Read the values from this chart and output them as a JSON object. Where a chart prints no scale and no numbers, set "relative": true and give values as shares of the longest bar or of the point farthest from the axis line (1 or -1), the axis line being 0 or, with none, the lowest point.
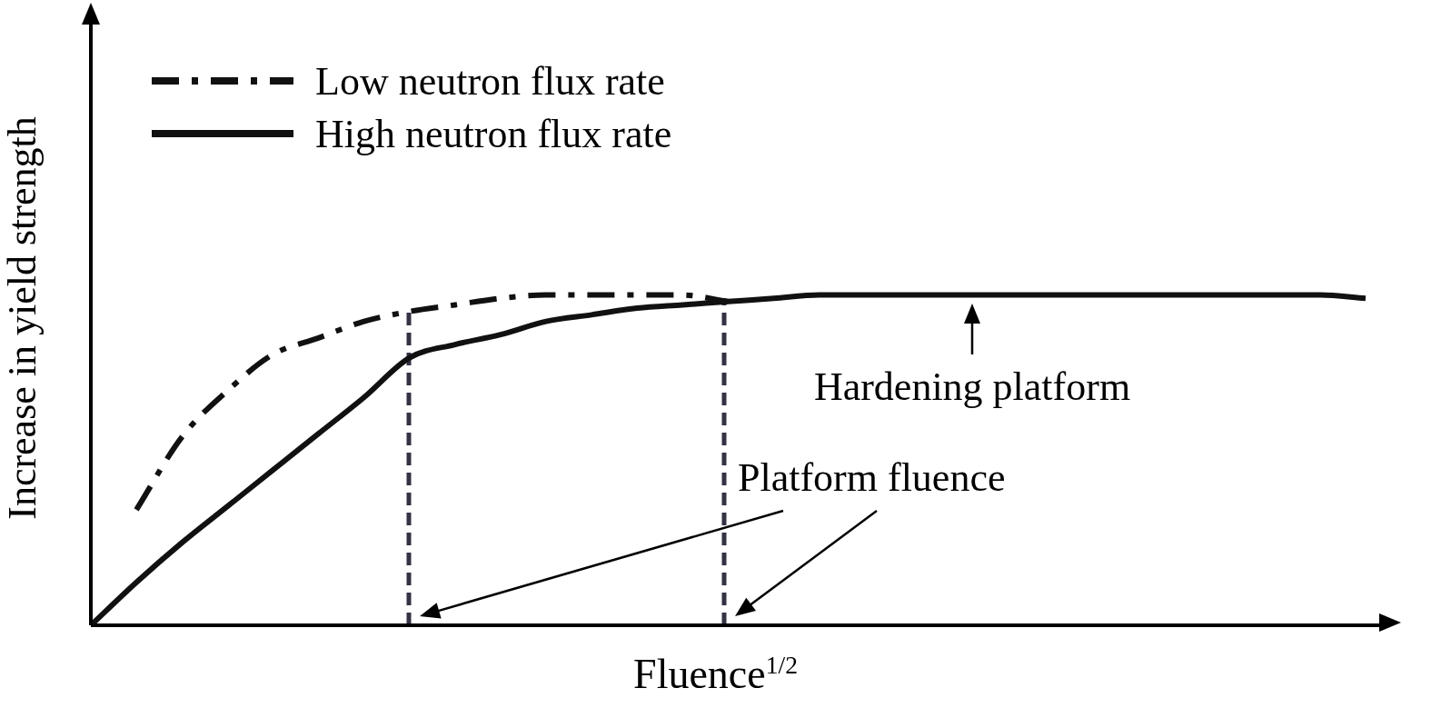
{
  "chart_data": {
    "type": "line",
    "relative": true,
    "xlabel": "Fluence$^{1/2}$",
    "ylabel": "Increase in yield strength",
    "tick_labels": false,
    "grid": false,
    "legend": "top left",
    "marker": "none",
    "categories": [
      null,
      null,
      null,
      null,
      null,
      null,
      null,
      null,
      null,
      null,
      null,
      null,
      null,
      null,
      null,
      null,
      null,
      null,
      null,
      null,
      null,
      null,
      null,
      null,
      null,
      null,
      null,
      null,
      null
    ],
    "series": [
      {
        "name": "Low neutron flux rate",
        "color": "#111111",
        "line_style": "dashed",
        "values": [
          null,
          0.35,
          0.57,
          0.71,
          0.82,
          0.87,
          0.92,
          0.95,
          0.97,
          0.99,
          1,
          1,
          1,
          1,
          0.98,
          null,
          null,
          null,
          null,
          null,
          null,
          null,
          null,
          null,
          null,
          null,
          null,
          null,
          null
        ]
      },
      {
        "name": "High neutron flux rate",
        "color": "#111111",
        "line_style": "solid",
        "values": [
          0,
          0.13,
          0.25,
          0.36,
          0.47,
          0.58,
          0.69,
          0.81,
          0.85,
          0.88,
          0.92,
          0.94,
          0.96,
          0.97,
          0.98,
          0.99,
          1,
          1,
          1,
          1,
          1,
          1,
          1,
          1,
          1,
          1,
          1,
          1,
          0.99
        ]
      }
    ],
    "annotations": [
      "Hardening platform",
      "Platform fluence"
    ]
  }
}
